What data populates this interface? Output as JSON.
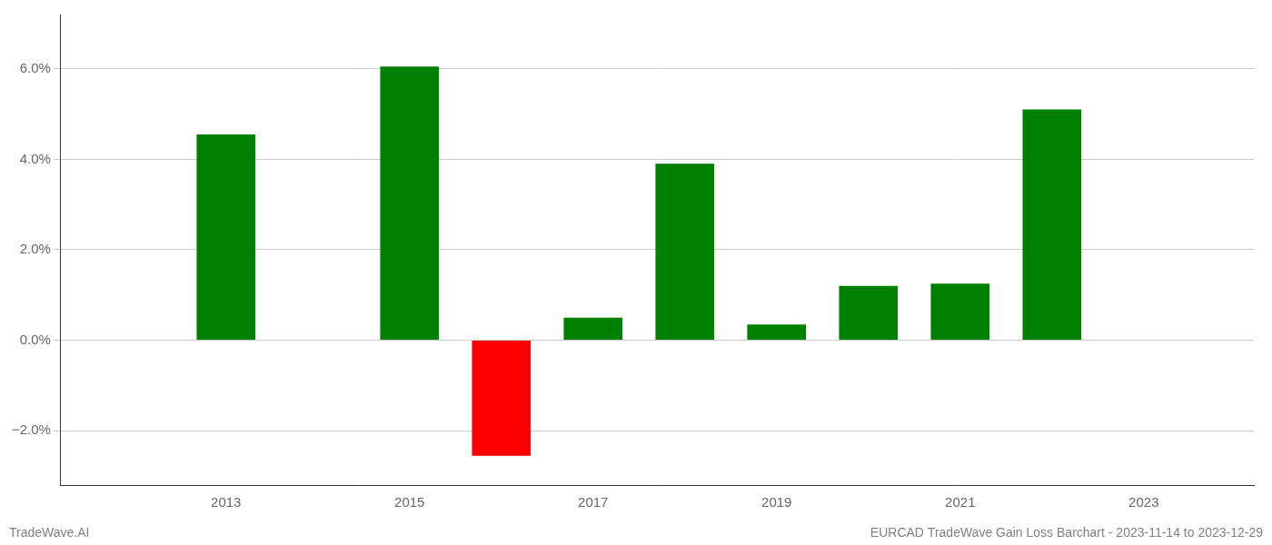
{
  "chart_data": {
    "type": "bar",
    "x": [
      2013,
      2015,
      2016,
      2017,
      2018,
      2019,
      2020,
      2021,
      2022
    ],
    "values": [
      0.0455,
      0.0605,
      -0.0255,
      0.005,
      0.039,
      0.0035,
      0.012,
      0.0125,
      0.051
    ],
    "colors": [
      "#008000",
      "#008000",
      "#ff0000",
      "#008000",
      "#008000",
      "#008000",
      "#008000",
      "#008000",
      "#008000"
    ],
    "xlim": [
      2011.2,
      2024.2
    ],
    "xticks": [
      2013,
      2015,
      2017,
      2019,
      2021,
      2023
    ],
    "ylim": [
      -0.032,
      0.072
    ],
    "yticks": [
      {
        "value": -0.02,
        "label": "−2.0%"
      },
      {
        "value": 0.0,
        "label": "0.0%"
      },
      {
        "value": 0.02,
        "label": "2.0%"
      },
      {
        "value": 0.04,
        "label": "4.0%"
      },
      {
        "value": 0.06,
        "label": "6.0%"
      }
    ],
    "grid": "y",
    "annotations": [
      "TradeWave.AI",
      "EURCAD TradeWave Gain Loss Barchart - 2023-11-14 to 2023-12-29"
    ]
  }
}
